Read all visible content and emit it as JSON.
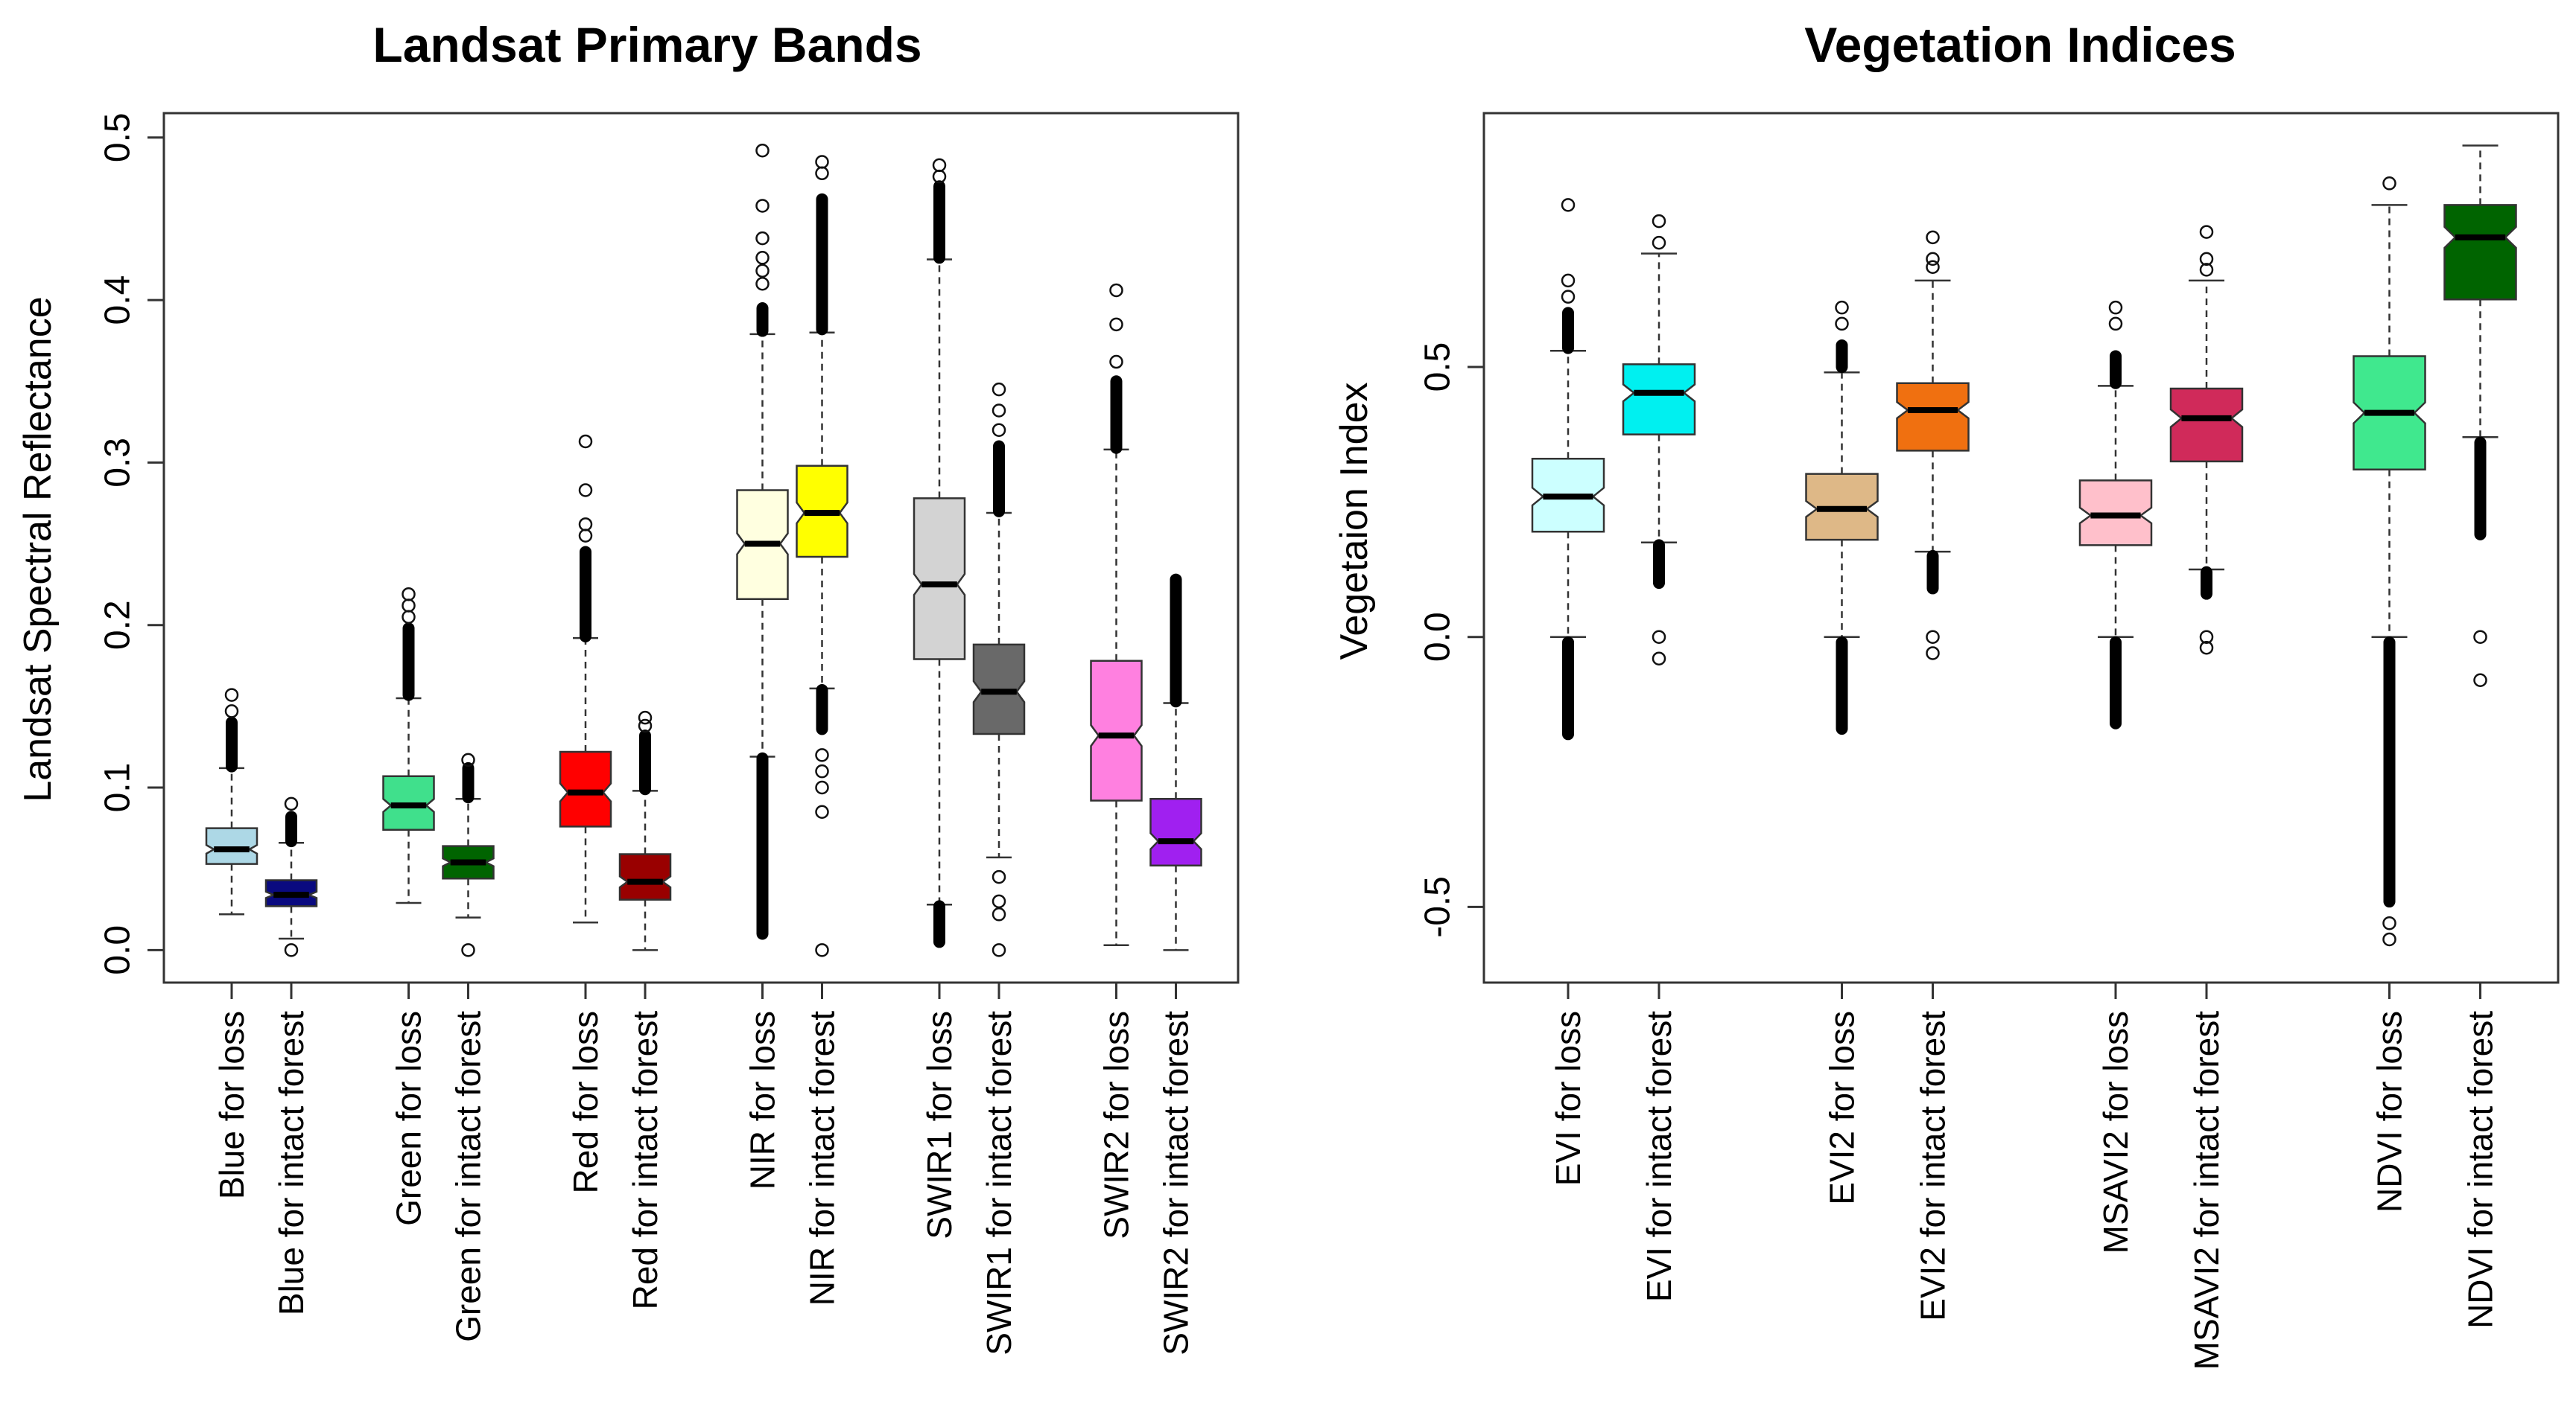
{
  "chart_data": [
    {
      "type": "boxplot",
      "title": "Landsat Primary Bands",
      "xlabel": "",
      "ylabel": "Landsat Spectral Reflectance",
      "ylim": [
        -0.02,
        0.515
      ],
      "yticks": [
        0.0,
        0.1,
        0.2,
        0.3,
        0.4,
        0.5
      ],
      "ytick_labels": [
        "0.0",
        "0.1",
        "0.2",
        "0.3",
        "0.4",
        "0.5"
      ],
      "notched": true,
      "series": [
        {
          "name": "Blue for loss",
          "color": "#ADD8E6",
          "group": 0,
          "slot": 0,
          "lower_whisker": 0.022,
          "q1": 0.053,
          "median": 0.062,
          "q3": 0.075,
          "upper_whisker": 0.112,
          "outliers": {
            "bands": [
              [
                0.113,
                0.14
              ]
            ],
            "points": [
              0.147,
              0.157
            ]
          }
        },
        {
          "name": "Blue for intact forest",
          "color": "#0A0A80",
          "group": 0,
          "slot": 1,
          "lower_whisker": 0.007,
          "q1": 0.027,
          "median": 0.034,
          "q3": 0.043,
          "upper_whisker": 0.066,
          "outliers": {
            "bands": [
              [
                0.067,
                0.082
              ]
            ],
            "points": [
              0.0,
              0.09
            ]
          }
        },
        {
          "name": "Green for loss",
          "color": "#40E08C",
          "group": 1,
          "slot": 0,
          "lower_whisker": 0.029,
          "q1": 0.074,
          "median": 0.089,
          "q3": 0.107,
          "upper_whisker": 0.155,
          "outliers": {
            "bands": [
              [
                0.157,
                0.198
              ]
            ],
            "points": [
              0.205,
              0.212,
              0.219
            ]
          }
        },
        {
          "name": "Green for intact forest",
          "color": "#006400",
          "group": 1,
          "slot": 1,
          "lower_whisker": 0.02,
          "q1": 0.044,
          "median": 0.054,
          "q3": 0.064,
          "upper_whisker": 0.093,
          "outliers": {
            "bands": [
              [
                0.094,
                0.112
              ]
            ],
            "points": [
              0.0,
              0.117
            ]
          }
        },
        {
          "name": "Red for loss",
          "color": "#FF0000",
          "group": 2,
          "slot": 0,
          "lower_whisker": 0.017,
          "q1": 0.076,
          "median": 0.097,
          "q3": 0.122,
          "upper_whisker": 0.192,
          "outliers": {
            "bands": [
              [
                0.193,
                0.245
              ]
            ],
            "points": [
              0.255,
              0.262,
              0.283,
              0.313
            ]
          }
        },
        {
          "name": "Red for intact forest",
          "color": "#990000",
          "group": 2,
          "slot": 1,
          "lower_whisker": 0.0,
          "q1": 0.031,
          "median": 0.042,
          "q3": 0.059,
          "upper_whisker": 0.098,
          "outliers": {
            "bands": [
              [
                0.099,
                0.132
              ]
            ],
            "points": [
              0.138,
              0.143
            ]
          }
        },
        {
          "name": "NIR for loss",
          "color": "#FFFFE0",
          "group": 3,
          "slot": 0,
          "lower_whisker": 0.119,
          "q1": 0.216,
          "median": 0.25,
          "q3": 0.283,
          "upper_whisker": 0.379,
          "outliers": {
            "bands": [
              [
                0.01,
                0.118
              ],
              [
                0.381,
                0.395
              ]
            ],
            "points": [
              0.41,
              0.418,
              0.426,
              0.438,
              0.458,
              0.492
            ]
          }
        },
        {
          "name": "NIR for intact forest",
          "color": "#FFFF00",
          "group": 3,
          "slot": 1,
          "lower_whisker": 0.161,
          "q1": 0.242,
          "median": 0.269,
          "q3": 0.298,
          "upper_whisker": 0.38,
          "outliers": {
            "bands": [
              [
                0.382,
                0.462
              ],
              [
                0.136,
                0.16
              ]
            ],
            "points": [
              0.0,
              0.085,
              0.1,
              0.11,
              0.12,
              0.478,
              0.485
            ]
          }
        },
        {
          "name": "SWIR1 for loss",
          "color": "#D3D3D3",
          "group": 4,
          "slot": 0,
          "lower_whisker": 0.028,
          "q1": 0.179,
          "median": 0.225,
          "q3": 0.278,
          "upper_whisker": 0.425,
          "outliers": {
            "bands": [
              [
                0.005,
                0.027
              ],
              [
                0.426,
                0.47
              ]
            ],
            "points": [
              0.476,
              0.483
            ]
          }
        },
        {
          "name": "SWIR1 for intact forest",
          "color": "#696969",
          "group": 4,
          "slot": 1,
          "lower_whisker": 0.057,
          "q1": 0.133,
          "median": 0.159,
          "q3": 0.188,
          "upper_whisker": 0.269,
          "outliers": {
            "bands": [
              [
                0.27,
                0.31
              ]
            ],
            "points": [
              0.0,
              0.022,
              0.03,
              0.045,
              0.32,
              0.332,
              0.345
            ]
          }
        },
        {
          "name": "SWIR2 for loss",
          "color": "#FF80E0",
          "group": 5,
          "slot": 0,
          "lower_whisker": 0.003,
          "q1": 0.092,
          "median": 0.132,
          "q3": 0.178,
          "upper_whisker": 0.308,
          "outliers": {
            "bands": [
              [
                0.309,
                0.35
              ]
            ],
            "points": [
              0.362,
              0.385,
              0.406
            ]
          }
        },
        {
          "name": "SWIR2 for intact forest",
          "color": "#A020F0",
          "group": 5,
          "slot": 1,
          "lower_whisker": 0.0,
          "q1": 0.052,
          "median": 0.067,
          "q3": 0.093,
          "upper_whisker": 0.152,
          "outliers": {
            "bands": [
              [
                0.153,
                0.228
              ]
            ],
            "points": []
          }
        }
      ]
    },
    {
      "type": "boxplot",
      "title": "Vegetation Indices",
      "xlabel": "",
      "ylabel": "Vegetaion Index",
      "ylim": [
        -0.64,
        0.97
      ],
      "yticks": [
        -0.5,
        0.0,
        0.5
      ],
      "ytick_labels": [
        "-0.5",
        "0.0",
        "0.5"
      ],
      "notched": true,
      "series": [
        {
          "name": "EVI for loss",
          "color": "#CCFFFF",
          "group": 0,
          "slot": 0,
          "lower_whisker": 0.0,
          "q1": 0.195,
          "median": 0.26,
          "q3": 0.33,
          "upper_whisker": 0.53,
          "outliers": {
            "bands": [
              [
                -0.18,
                -0.01
              ],
              [
                0.535,
                0.6
              ]
            ],
            "points": [
              0.63,
              0.66,
              0.8
            ]
          }
        },
        {
          "name": "EVI for intact forest",
          "color": "#00F0F0",
          "group": 0,
          "slot": 1,
          "lower_whisker": 0.175,
          "q1": 0.375,
          "median": 0.452,
          "q3": 0.505,
          "upper_whisker": 0.71,
          "outliers": {
            "bands": [
              [
                0.1,
                0.17
              ]
            ],
            "points": [
              -0.04,
              0.0,
              0.73,
              0.77
            ]
          }
        },
        {
          "name": "EVI2 for loss",
          "color": "#DEB887",
          "group": 1,
          "slot": 0,
          "lower_whisker": 0.0,
          "q1": 0.18,
          "median": 0.237,
          "q3": 0.302,
          "upper_whisker": 0.49,
          "outliers": {
            "bands": [
              [
                -0.17,
                -0.01
              ],
              [
                0.5,
                0.54
              ]
            ],
            "points": [
              0.58,
              0.61
            ]
          }
        },
        {
          "name": "EVI2 for intact forest",
          "color": "#F07010",
          "group": 1,
          "slot": 1,
          "lower_whisker": 0.158,
          "q1": 0.345,
          "median": 0.42,
          "q3": 0.47,
          "upper_whisker": 0.66,
          "outliers": {
            "bands": [
              [
                0.09,
                0.15
              ]
            ],
            "points": [
              -0.03,
              0.0,
              0.685,
              0.7,
              0.74
            ]
          }
        },
        {
          "name": "MSAVI2 for loss",
          "color": "#FFC0CB",
          "group": 2,
          "slot": 0,
          "lower_whisker": 0.0,
          "q1": 0.17,
          "median": 0.225,
          "q3": 0.29,
          "upper_whisker": 0.465,
          "outliers": {
            "bands": [
              [
                -0.16,
                -0.01
              ],
              [
                0.47,
                0.52
              ]
            ],
            "points": [
              0.58,
              0.61
            ]
          }
        },
        {
          "name": "MSAVI2 for intact forest",
          "color": "#D02A5A",
          "group": 2,
          "slot": 1,
          "lower_whisker": 0.125,
          "q1": 0.325,
          "median": 0.405,
          "q3": 0.46,
          "upper_whisker": 0.66,
          "outliers": {
            "bands": [
              [
                0.08,
                0.12
              ]
            ],
            "points": [
              -0.02,
              0.0,
              0.68,
              0.7,
              0.75
            ]
          }
        },
        {
          "name": "NDVI for loss",
          "color": "#40E88E",
          "group": 3,
          "slot": 0,
          "lower_whisker": 0.0,
          "q1": 0.31,
          "median": 0.415,
          "q3": 0.52,
          "upper_whisker": 0.8,
          "outliers": {
            "bands": [
              [
                -0.49,
                -0.01
              ]
            ],
            "points": [
              -0.53,
              -0.56,
              0.84
            ]
          }
        },
        {
          "name": "NDVI for intact forest",
          "color": "#006400",
          "group": 3,
          "slot": 1,
          "lower_whisker": 0.37,
          "q1": 0.625,
          "median": 0.74,
          "q3": 0.8,
          "upper_whisker": 0.91,
          "outliers": {
            "bands": [
              [
                0.19,
                0.36
              ]
            ],
            "points": [
              -0.08,
              0.0
            ]
          }
        }
      ]
    }
  ]
}
